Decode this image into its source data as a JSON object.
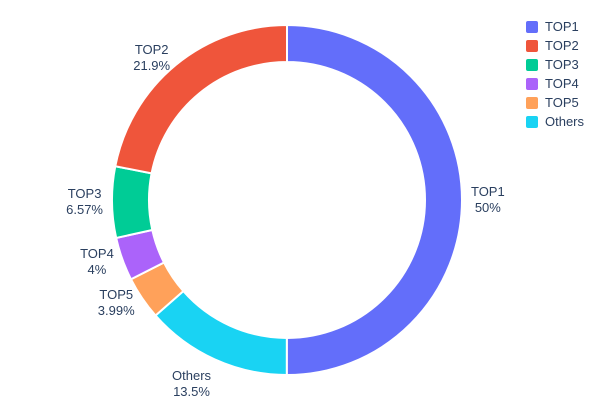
{
  "chart_data": {
    "type": "pie",
    "subtype": "donut",
    "hole": 0.79,
    "title": "",
    "labels": [
      "TOP1",
      "TOP2",
      "TOP3",
      "TOP4",
      "TOP5",
      "Others"
    ],
    "values": [
      50,
      21.9,
      6.57,
      4,
      3.99,
      13.5
    ],
    "percent_labels": [
      "50%",
      "21.9%",
      "6.57%",
      "4%",
      "3.99%",
      "13.5%"
    ],
    "colors": [
      "#636EFA",
      "#EF553B",
      "#00CC96",
      "#AB63FA",
      "#FFA15A",
      "#19D3F3"
    ],
    "text_color": "#2a3f5f",
    "slice_border_color": "#ffffff",
    "legend": {
      "position": "top-right",
      "entries": [
        "TOP1",
        "TOP2",
        "TOP3",
        "TOP4",
        "TOP5",
        "Others"
      ]
    },
    "layout_hints": {
      "labels_position": "outside",
      "first_slice_starts_at": "12-o-clock going clockwise",
      "remaining_slices_direction": "counterclockwise from 12-o-clock",
      "clockwise_order_from_top": [
        "TOP1",
        "Others",
        "TOP5",
        "TOP4",
        "TOP3",
        "TOP2"
      ]
    }
  }
}
